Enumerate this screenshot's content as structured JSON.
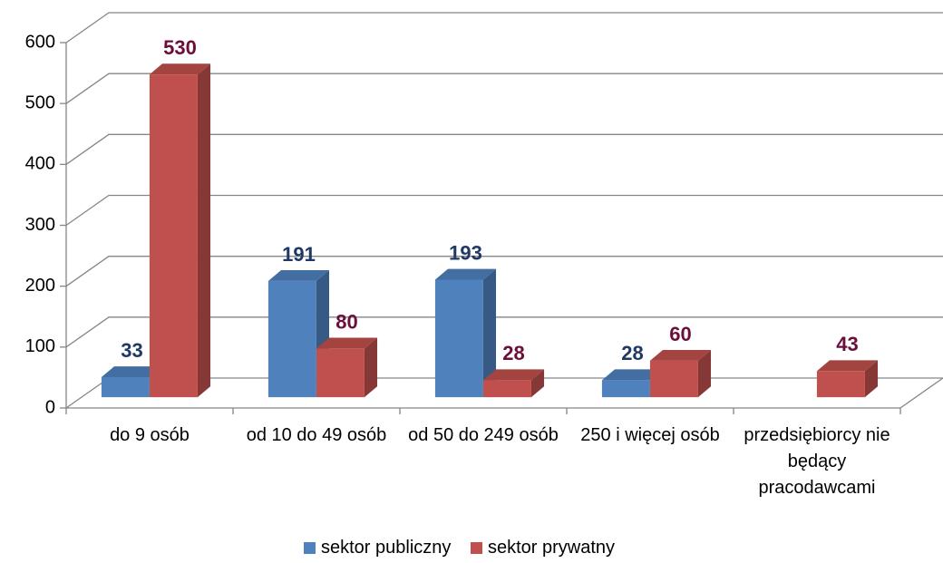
{
  "chart_data": {
    "type": "bar3d",
    "categories": [
      "do 9 osób",
      "od 10 do 49 osób",
      "od 50 do 249 osób",
      "250 i więcej osób",
      "przedsiębiorcy nie będący pracodawcami"
    ],
    "series": [
      {
        "name": "sektor publiczny",
        "color": "#4f81bd",
        "label_color": "#1f3864",
        "values": [
          33,
          191,
          193,
          28,
          null
        ]
      },
      {
        "name": "sektor prywatny",
        "color": "#c0504d",
        "label_color": "#6b0f3a",
        "values": [
          530,
          80,
          28,
          60,
          43
        ]
      }
    ],
    "ylim": [
      0,
      600
    ],
    "yticks": [
      0,
      100,
      200,
      300,
      400,
      500,
      600
    ],
    "grid": true,
    "legend": "bottom"
  }
}
